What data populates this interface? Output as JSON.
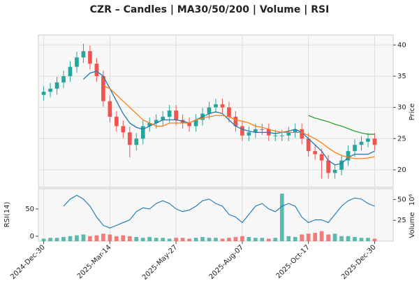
{
  "chart_data": [
    {
      "type": "candlestick",
      "title": "CZR – Candles | MA30/50/200 | Volume | RSI",
      "ylabel": "Price",
      "x": [
        0,
        1,
        2,
        3,
        4,
        5,
        6,
        7,
        8,
        9,
        10,
        11,
        12,
        13,
        14,
        15,
        16,
        17,
        18,
        19,
        20,
        21,
        22,
        23,
        24,
        25,
        26,
        27,
        28,
        29,
        30,
        31,
        32,
        33,
        34,
        35,
        36,
        37,
        38,
        39,
        40,
        41,
        42,
        43,
        44,
        45,
        46,
        47,
        48,
        49,
        50
      ],
      "open": [
        32,
        32.5,
        33,
        34,
        35,
        36.5,
        38,
        39,
        37,
        35,
        31,
        28.5,
        27,
        26,
        24,
        25,
        27,
        27.5,
        28,
        28.5,
        29.5,
        28,
        27.5,
        27,
        28,
        29,
        30,
        30.5,
        30,
        28.5,
        27,
        25.5,
        26,
        26.5,
        26.5,
        25.5,
        25.5,
        25.5,
        26,
        26.5,
        25,
        23,
        22.5,
        21.5,
        19.5,
        20,
        21.5,
        23,
        24,
        24.5,
        25
      ],
      "high": [
        33.4,
        33.9,
        34.9,
        35.9,
        37.4,
        38.9,
        40.2,
        39.9,
        37.9,
        35.9,
        31.9,
        29.4,
        27.9,
        26.9,
        25.9,
        27.9,
        28.4,
        28.9,
        29.4,
        30.4,
        30.4,
        28.9,
        28.4,
        28.9,
        29.9,
        30.9,
        31.4,
        31.4,
        30.9,
        29.4,
        27.9,
        26.9,
        27.4,
        27.4,
        27.4,
        26.4,
        26.4,
        26.9,
        27.4,
        27.4,
        25.9,
        23.9,
        23.4,
        22.4,
        20.9,
        22.4,
        23.9,
        24.9,
        25.4,
        25.9,
        25.9
      ],
      "low": [
        31.1,
        31.6,
        32.1,
        33.1,
        34.1,
        35.6,
        37.1,
        36.1,
        34.1,
        30.1,
        27.6,
        26.1,
        25.1,
        22,
        23.1,
        24.1,
        26.1,
        26.6,
        27.1,
        27.6,
        27.1,
        26.6,
        26.1,
        26.1,
        27.1,
        28.1,
        29.1,
        29.1,
        27.6,
        26.1,
        24.6,
        24.6,
        25.1,
        25.6,
        24.6,
        24.6,
        24.6,
        24.6,
        25.1,
        24.1,
        22.1,
        21.6,
        18.6,
        18.6,
        18.6,
        19.1,
        20.6,
        22.1,
        23.1,
        23.6,
        23.1
      ],
      "close": [
        32.5,
        33,
        34,
        35,
        36.5,
        38,
        39,
        37,
        35,
        31,
        28.5,
        27,
        26,
        24,
        25,
        27,
        27.5,
        28,
        28.5,
        29.5,
        28,
        27.5,
        27,
        28,
        29,
        30,
        30.5,
        30,
        28.5,
        27,
        25.5,
        26,
        26.5,
        26.5,
        25.5,
        25.5,
        25.5,
        26,
        26.5,
        25,
        23,
        22.5,
        21.5,
        19.5,
        20,
        21.5,
        23,
        24,
        24.5,
        25,
        24
      ],
      "up_color": "#26a69a",
      "down_color": "#ef5350",
      "lines": [
        {
          "color": "#1f77b4",
          "values": [
            null,
            null,
            null,
            null,
            null,
            null,
            34.5,
            35.5,
            35.8,
            35,
            33,
            31,
            29,
            27.5,
            26.8,
            26.5,
            27,
            27.5,
            28,
            28,
            28,
            27.8,
            27.5,
            28,
            28.5,
            29,
            29.3,
            29,
            28,
            27,
            26.5,
            26.2,
            26,
            26,
            26,
            25.8,
            26,
            26.2,
            26.5,
            26,
            25,
            24,
            23,
            21.5,
            20.8,
            21,
            22,
            22.5,
            22.5,
            22.5,
            23
          ]
        },
        {
          "color": "#ff7f0e",
          "values": [
            null,
            null,
            null,
            null,
            null,
            null,
            null,
            null,
            null,
            33.5,
            33,
            32,
            31,
            30,
            29,
            28,
            27.5,
            27,
            27,
            27.5,
            27.5,
            27.5,
            27.5,
            28,
            28.3,
            28.5,
            28.7,
            28.7,
            28.5,
            28,
            27.8,
            27.5,
            27,
            26.8,
            26.5,
            26.2,
            26,
            26,
            26,
            26,
            25.5,
            25,
            24.3,
            23.5,
            22.8,
            22.3,
            22,
            21.8,
            21.8,
            21.9,
            22.1
          ]
        },
        {
          "color": "#2ca02c",
          "values": [
            null,
            null,
            null,
            null,
            null,
            null,
            null,
            null,
            null,
            null,
            null,
            null,
            null,
            null,
            null,
            null,
            null,
            null,
            null,
            null,
            null,
            null,
            null,
            null,
            null,
            null,
            null,
            null,
            null,
            null,
            null,
            null,
            null,
            null,
            null,
            null,
            null,
            null,
            null,
            null,
            28.7,
            28.3,
            28,
            27.7,
            27.3,
            27,
            26.6,
            26.2,
            25.9,
            25.7,
            25.7
          ]
        }
      ],
      "xlim": [
        -0.8,
        52.8
      ],
      "xticks": [
        {
          "value": 0,
          "label": "2024-Dec-30"
        },
        {
          "value": 10,
          "label": "2025-Mar-14"
        },
        {
          "value": 20,
          "label": "2025-May-27"
        },
        {
          "value": 30,
          "label": "2025-Aug-07"
        },
        {
          "value": 40,
          "label": "2025-Oct-17"
        },
        {
          "value": 50,
          "label": "2025-Dec-30"
        }
      ],
      "ylim": [
        17.2,
        41.6
      ],
      "yticks": [
        20,
        25,
        30,
        35,
        40
      ],
      "grid": true
    },
    {
      "type": "bar",
      "ylabel": "Volume",
      "offset_label": "10⁶",
      "values": [
        3,
        4,
        4,
        5,
        6,
        7,
        8,
        6,
        7,
        9,
        8,
        6,
        7,
        6,
        5,
        4,
        5,
        4,
        4,
        3,
        4,
        4,
        3,
        4,
        5,
        4,
        4,
        3,
        4,
        5,
        6,
        5,
        4,
        4,
        3,
        4,
        57,
        6,
        5,
        8,
        9,
        10,
        12,
        8,
        9,
        6,
        6,
        5,
        4,
        4,
        3
      ],
      "ylim": [
        0,
        62.9
      ],
      "yticks": [
        25,
        50
      ]
    },
    {
      "type": "line",
      "ylabel": "RSI(14)",
      "color": "#1f77b4",
      "values": [
        null,
        null,
        null,
        55,
        68,
        75,
        68,
        55,
        35,
        20,
        15,
        20,
        25,
        30,
        45,
        52,
        50,
        60,
        65,
        60,
        50,
        45,
        48,
        55,
        65,
        68,
        60,
        55,
        40,
        35,
        25,
        40,
        55,
        60,
        50,
        45,
        55,
        60,
        55,
        35,
        25,
        30,
        30,
        25,
        40,
        55,
        65,
        70,
        68,
        60,
        55
      ],
      "ylim": [
        -9,
        87
      ],
      "yticks": [
        0,
        50
      ]
    }
  ]
}
